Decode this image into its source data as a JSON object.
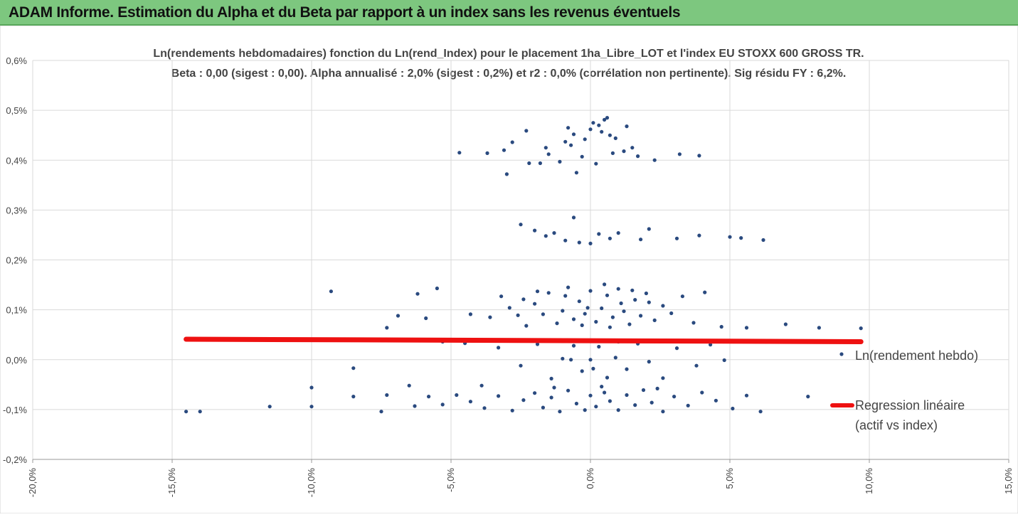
{
  "header": {
    "title": "ADAM Informe. Estimation du Alpha et du Beta par rapport à un index sans les revenus éventuels"
  },
  "chart_data": {
    "type": "scatter",
    "title": "Ln(rendements hebdomadaires) fonction du Ln(rend_Index) pour le placement 1ha_Libre_LOT et l'index EU STOXX 600 GROSS TR.",
    "subtitle": "Beta : 0,00 (sigest : 0,00). Alpha annualisé : 2,0% (sigest : 0,2%) et r2 : 0,0% (corrélation non pertinente). Sig résidu FY : 6,2%.",
    "xlabel": "",
    "ylabel": "",
    "xlim": [
      -20,
      15
    ],
    "ylim": [
      -0.2,
      0.6
    ],
    "x_ticks": [
      "-20,0%",
      "-15,0%",
      "-10,0%",
      "-5,0%",
      "0,0%",
      "5,0%",
      "10,0%",
      "15,0%"
    ],
    "y_ticks": [
      "0,6%",
      "0,5%",
      "0,4%",
      "0,3%",
      "0,2%",
      "0,1%",
      "0,0%",
      "-0,1%",
      "-0,2%"
    ],
    "grid": "horizontal",
    "legend_position": "right",
    "colors": {
      "points": "#2a4a7f",
      "regression": "#ee1111",
      "header": "#7dc77f"
    },
    "series": [
      {
        "name": "Ln(rendement hebdo)",
        "kind": "scatter",
        "points": [
          [
            -14.5,
            -0.104
          ],
          [
            -14.0,
            -0.104
          ],
          [
            -11.5,
            -0.094
          ],
          [
            -10.0,
            -0.094
          ],
          [
            -10.0,
            -0.056
          ],
          [
            -9.3,
            0.137
          ],
          [
            -8.5,
            -0.017
          ],
          [
            -8.5,
            -0.074
          ],
          [
            -7.5,
            -0.104
          ],
          [
            -7.3,
            -0.071
          ],
          [
            -7.3,
            0.064
          ],
          [
            -6.9,
            0.088
          ],
          [
            -6.5,
            -0.052
          ],
          [
            -6.3,
            -0.093
          ],
          [
            -6.2,
            0.132
          ],
          [
            -5.5,
            0.143
          ],
          [
            -5.3,
            0.036
          ],
          [
            -4.7,
            0.415
          ],
          [
            -3.7,
            0.414
          ],
          [
            -3.1,
            0.42
          ],
          [
            -3.0,
            0.372
          ],
          [
            -2.8,
            0.436
          ],
          [
            -2.3,
            0.459
          ],
          [
            -2.2,
            0.394
          ],
          [
            -1.8,
            0.394
          ],
          [
            -1.6,
            0.425
          ],
          [
            -1.5,
            0.412
          ],
          [
            -1.1,
            0.397
          ],
          [
            -0.9,
            0.437
          ],
          [
            -0.8,
            0.465
          ],
          [
            -0.7,
            0.43
          ],
          [
            -0.6,
            0.452
          ],
          [
            -0.5,
            0.375
          ],
          [
            -0.3,
            0.407
          ],
          [
            -0.2,
            0.442
          ],
          [
            0.0,
            0.462
          ],
          [
            0.1,
            0.475
          ],
          [
            0.2,
            0.393
          ],
          [
            0.3,
            0.47
          ],
          [
            0.4,
            0.457
          ],
          [
            0.5,
            0.481
          ],
          [
            0.6,
            0.485
          ],
          [
            0.7,
            0.45
          ],
          [
            0.8,
            0.414
          ],
          [
            0.9,
            0.444
          ],
          [
            1.2,
            0.418
          ],
          [
            1.3,
            0.468
          ],
          [
            1.5,
            0.425
          ],
          [
            1.7,
            0.408
          ],
          [
            2.3,
            0.4
          ],
          [
            3.2,
            0.412
          ],
          [
            3.9,
            0.409
          ],
          [
            -2.5,
            0.271
          ],
          [
            -2.0,
            0.259
          ],
          [
            -1.6,
            0.248
          ],
          [
            -1.3,
            0.254
          ],
          [
            -0.9,
            0.239
          ],
          [
            -0.6,
            0.285
          ],
          [
            -0.4,
            0.235
          ],
          [
            0.0,
            0.233
          ],
          [
            0.3,
            0.252
          ],
          [
            0.7,
            0.243
          ],
          [
            1.0,
            0.254
          ],
          [
            1.8,
            0.241
          ],
          [
            2.1,
            0.262
          ],
          [
            3.1,
            0.243
          ],
          [
            3.9,
            0.249
          ],
          [
            5.0,
            0.246
          ],
          [
            5.4,
            0.244
          ],
          [
            6.2,
            0.24
          ],
          [
            -3.6,
            0.085
          ],
          [
            -3.2,
            0.127
          ],
          [
            -2.9,
            0.104
          ],
          [
            -2.6,
            0.089
          ],
          [
            -2.3,
            0.068
          ],
          [
            -2.0,
            0.112
          ],
          [
            -1.7,
            0.091
          ],
          [
            -1.5,
            0.134
          ],
          [
            -1.2,
            0.073
          ],
          [
            -1.0,
            0.098
          ],
          [
            -0.8,
            0.145
          ],
          [
            -0.6,
            0.081
          ],
          [
            -0.4,
            0.117
          ],
          [
            -0.2,
            0.092
          ],
          [
            0.0,
            0.138
          ],
          [
            0.2,
            0.076
          ],
          [
            0.4,
            0.103
          ],
          [
            0.6,
            0.129
          ],
          [
            0.8,
            0.085
          ],
          [
            1.0,
            0.142
          ],
          [
            1.2,
            0.097
          ],
          [
            1.4,
            0.071
          ],
          [
            1.6,
            0.12
          ],
          [
            1.8,
            0.088
          ],
          [
            2.0,
            0.133
          ],
          [
            2.3,
            0.079
          ],
          [
            2.6,
            0.108
          ],
          [
            2.9,
            0.093
          ],
          [
            3.3,
            0.127
          ],
          [
            3.7,
            0.074
          ],
          [
            4.1,
            0.135
          ],
          [
            4.7,
            0.066
          ],
          [
            5.6,
            0.064
          ],
          [
            7.0,
            0.071
          ],
          [
            8.2,
            0.064
          ],
          [
            9.7,
            0.063
          ],
          [
            -0.9,
            0.128
          ],
          [
            -0.3,
            0.069
          ],
          [
            0.5,
            0.151
          ],
          [
            1.1,
            0.113
          ],
          [
            -1.9,
            0.137
          ],
          [
            -4.3,
            0.091
          ],
          [
            -5.9,
            0.083
          ],
          [
            -2.4,
            0.121
          ],
          [
            0.7,
            0.065
          ],
          [
            1.5,
            0.139
          ],
          [
            -0.1,
            0.104
          ],
          [
            2.1,
            0.115
          ],
          [
            -3.3,
            0.024
          ],
          [
            -2.5,
            -0.012
          ],
          [
            -1.9,
            0.031
          ],
          [
            -1.4,
            -0.038
          ],
          [
            -1.0,
            0.002
          ],
          [
            -0.6,
            0.028
          ],
          [
            -0.3,
            -0.023
          ],
          [
            0.0,
            0.0
          ],
          [
            0.3,
            0.026
          ],
          [
            0.6,
            -0.036
          ],
          [
            0.9,
            0.004
          ],
          [
            1.3,
            -0.019
          ],
          [
            1.7,
            0.032
          ],
          [
            2.1,
            -0.004
          ],
          [
            2.6,
            -0.037
          ],
          [
            3.1,
            0.023
          ],
          [
            3.8,
            -0.012
          ],
          [
            4.3,
            0.03
          ],
          [
            4.8,
            -0.001
          ],
          [
            -4.5,
            0.033
          ],
          [
            -0.7,
            0.0
          ],
          [
            0.1,
            -0.018
          ],
          [
            1.0,
            0.036
          ],
          [
            -5.8,
            -0.074
          ],
          [
            -5.3,
            -0.09
          ],
          [
            -4.8,
            -0.071
          ],
          [
            -4.3,
            -0.084
          ],
          [
            -3.8,
            -0.097
          ],
          [
            -3.3,
            -0.073
          ],
          [
            -2.8,
            -0.102
          ],
          [
            -2.4,
            -0.081
          ],
          [
            -2.0,
            -0.067
          ],
          [
            -1.7,
            -0.096
          ],
          [
            -1.4,
            -0.076
          ],
          [
            -1.1,
            -0.104
          ],
          [
            -0.8,
            -0.062
          ],
          [
            -0.5,
            -0.088
          ],
          [
            -0.2,
            -0.101
          ],
          [
            0.0,
            -0.072
          ],
          [
            0.2,
            -0.094
          ],
          [
            0.5,
            -0.066
          ],
          [
            0.7,
            -0.083
          ],
          [
            1.0,
            -0.101
          ],
          [
            1.3,
            -0.071
          ],
          [
            1.6,
            -0.091
          ],
          [
            1.9,
            -0.061
          ],
          [
            2.2,
            -0.086
          ],
          [
            2.6,
            -0.104
          ],
          [
            3.0,
            -0.074
          ],
          [
            3.5,
            -0.092
          ],
          [
            4.0,
            -0.066
          ],
          [
            4.5,
            -0.082
          ],
          [
            5.1,
            -0.098
          ],
          [
            5.6,
            -0.072
          ],
          [
            6.1,
            -0.104
          ],
          [
            7.8,
            -0.074
          ],
          [
            -1.3,
            -0.056
          ],
          [
            0.4,
            -0.054
          ],
          [
            2.4,
            -0.058
          ],
          [
            -3.9,
            -0.052
          ]
        ]
      },
      {
        "name": "Regression linéaire (actif vs index)",
        "legend_lines": [
          "Regression linéaire",
          "(actif vs index)"
        ],
        "kind": "line",
        "x": [
          -14.5,
          9.7
        ],
        "y": [
          0.041,
          0.036
        ]
      }
    ]
  }
}
